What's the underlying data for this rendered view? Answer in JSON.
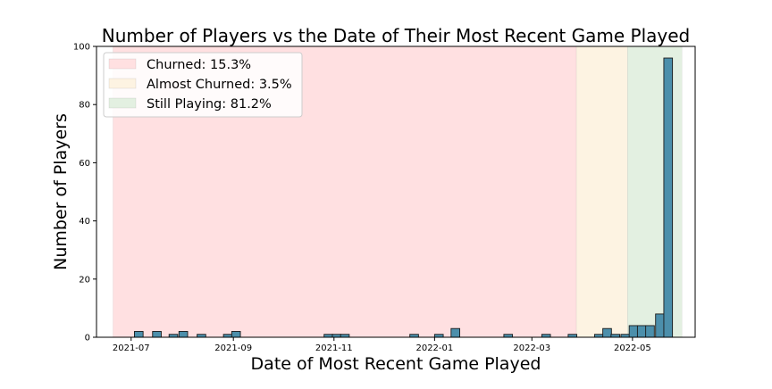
{
  "chart_data": {
    "type": "bar",
    "title": "Number of Players vs the Date of Their Most Recent Game Played",
    "xlabel": "Date of Most Recent Game Played",
    "ylabel": "Number of Players",
    "ylim": [
      0,
      100
    ],
    "yticks": [
      0,
      20,
      40,
      60,
      80,
      100
    ],
    "xticks": [
      "2021-07",
      "2021-09",
      "2021-11",
      "2022-01",
      "2022-03",
      "2022-05"
    ],
    "xlim": [
      "2021-06-10",
      "2022-06-08"
    ],
    "bin_width_days": 5.25,
    "regions": [
      {
        "label": "Churned: 15.3%",
        "start": "2021-06-20",
        "end": "2022-03-28",
        "color": "#ffe0e1"
      },
      {
        "label": "Almost Churned: 3.5%",
        "start": "2022-03-28",
        "end": "2022-04-28",
        "color": "#fdf3e2"
      },
      {
        "label": "Still Playing: 81.2%",
        "start": "2022-04-28",
        "end": "2022-05-31",
        "color": "#e3f0e1"
      }
    ],
    "bar_color": "#4c8fab",
    "legend_position": "upper-left",
    "bins": [
      {
        "start": "2021-07-03",
        "value": 2
      },
      {
        "start": "2021-07-14",
        "value": 2
      },
      {
        "start": "2021-07-24",
        "value": 1
      },
      {
        "start": "2021-07-30",
        "value": 2
      },
      {
        "start": "2021-08-10",
        "value": 1
      },
      {
        "start": "2021-08-26",
        "value": 1
      },
      {
        "start": "2021-08-31",
        "value": 2
      },
      {
        "start": "2021-10-26",
        "value": 1
      },
      {
        "start": "2021-10-31",
        "value": 1
      },
      {
        "start": "2021-11-05",
        "value": 1
      },
      {
        "start": "2021-12-17",
        "value": 1
      },
      {
        "start": "2022-01-01",
        "value": 1
      },
      {
        "start": "2022-01-11",
        "value": 3
      },
      {
        "start": "2022-02-12",
        "value": 1
      },
      {
        "start": "2022-03-07",
        "value": 1
      },
      {
        "start": "2022-03-23",
        "value": 1
      },
      {
        "start": "2022-04-08",
        "value": 1
      },
      {
        "start": "2022-04-13",
        "value": 3
      },
      {
        "start": "2022-04-18",
        "value": 1
      },
      {
        "start": "2022-04-24",
        "value": 1
      },
      {
        "start": "2022-04-29",
        "value": 4
      },
      {
        "start": "2022-05-04",
        "value": 4
      },
      {
        "start": "2022-05-09",
        "value": 4
      },
      {
        "start": "2022-05-15",
        "value": 8
      },
      {
        "start": "2022-05-20",
        "value": 96
      }
    ]
  }
}
